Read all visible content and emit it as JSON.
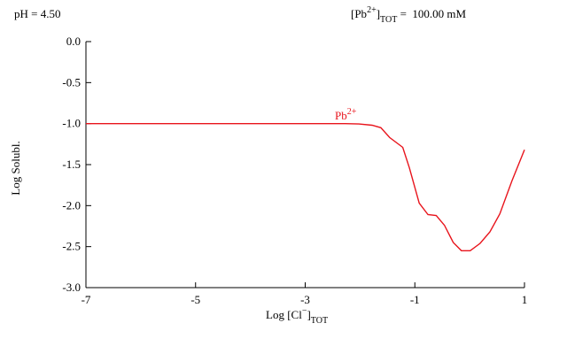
{
  "chart_data": {
    "type": "line",
    "header_left": "pH =  4.50",
    "header_right": [
      "[Pb",
      "2+",
      "]",
      "TOT",
      " =  100.00 mM"
    ],
    "x_label": [
      "Log [Cl",
      "−",
      "]",
      "TOT"
    ],
    "y_label": "Log Solubl.",
    "xlim": [
      -7,
      1
    ],
    "ylim": [
      -3.0,
      0.0
    ],
    "xticks": [
      -7,
      -5,
      -3,
      -1,
      1
    ],
    "yticks": [
      {
        "value": 0,
        "label": "0.0"
      },
      -0.5,
      {
        "value": -1,
        "label": "-1.0"
      },
      -1.5,
      {
        "value": -2,
        "label": "-2.0"
      },
      -2.5,
      {
        "value": -3,
        "label": "-3.0"
      }
    ],
    "x": [
      -7,
      -2.27,
      -2.02,
      -1.78,
      -1.62,
      -1.46,
      -1.22,
      -1.1,
      -0.92,
      -0.76,
      -0.61,
      -0.46,
      -0.3,
      -0.15,
      0.01,
      0.19,
      0.37,
      0.55,
      0.77,
      1
    ],
    "series": [
      {
        "name": "Pb",
        "name_sup": "2+",
        "color": "#e8141c",
        "values": [
          -1.0,
          -1.0,
          -1.005,
          -1.02,
          -1.05,
          -1.17,
          -1.29,
          -1.54,
          -1.97,
          -2.11,
          -2.12,
          -2.24,
          -2.45,
          -2.55,
          -2.55,
          -2.46,
          -2.32,
          -2.1,
          -1.7,
          -1.32
        ]
      }
    ]
  }
}
